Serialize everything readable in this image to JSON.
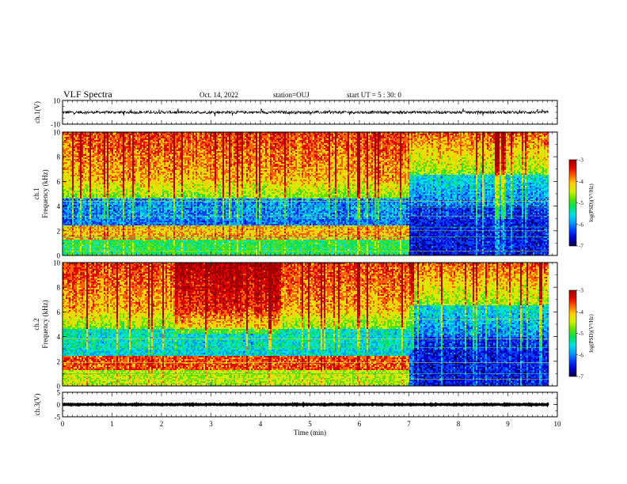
{
  "header": {
    "title": "VLF Spectra",
    "date": "Oct. 14, 2022",
    "station": "station=OUJ",
    "start": "start  UT =   5 : 30: 0"
  },
  "chart_data": [
    {
      "type": "line",
      "name": "ch1-waveform",
      "ylabel": "ch.1(V)",
      "ylim": [
        -10,
        10
      ],
      "yticks": [
        "10",
        "-10"
      ],
      "xlim": [
        0,
        10
      ],
      "series": [
        {
          "color": "#000000",
          "baseline": 0,
          "noise_amplitude": 1.2
        }
      ]
    },
    {
      "type": "heatmap",
      "name": "ch1-spectrogram",
      "ylabel_top": "ch.1",
      "ylabel": "Frequency (kHz)",
      "ylim": [
        0,
        10
      ],
      "yticks": [
        "0",
        "2",
        "4",
        "6",
        "8",
        "10"
      ],
      "xlim": [
        0,
        10
      ],
      "data_end_min": 9.82,
      "transition_min": 7.0,
      "colorbar": {
        "label": "log(PSD)(V²/Hz)",
        "range": [
          -7,
          -3
        ],
        "ticks": [
          "-3",
          "-4",
          "-5",
          "-6",
          "-7"
        ]
      }
    },
    {
      "type": "heatmap",
      "name": "ch2-spectrogram",
      "ylabel_top": "ch.2",
      "ylabel": "Frequency (kHz)",
      "ylim": [
        0,
        10
      ],
      "yticks": [
        "0",
        "2",
        "4",
        "6",
        "8",
        "10"
      ],
      "xlim": [
        0,
        10
      ],
      "data_end_min": 9.82,
      "transition_min": 7.0,
      "colorbar": {
        "label": "log(PSD)(V²/Hz)",
        "range": [
          -7,
          -3
        ],
        "ticks": [
          "-3",
          "-4",
          "-5",
          "-6",
          "-7"
        ]
      }
    },
    {
      "type": "line",
      "name": "ch3-waveform",
      "ylabel": "ch.3(V)",
      "ylim": [
        -5,
        5
      ],
      "yticks": [
        "5",
        "0",
        "-5"
      ],
      "xlim": [
        0,
        10
      ],
      "xticks": [
        "0",
        "1",
        "2",
        "3",
        "4",
        "5",
        "6",
        "7",
        "8",
        "9",
        "10"
      ],
      "xlabel": "Time  (min)",
      "series": [
        {
          "color": "#000000",
          "value": 0,
          "noise_amplitude": 0.3
        }
      ]
    }
  ],
  "colormap": [
    "#08004a",
    "#0000c8",
    "#0040ff",
    "#00a0ff",
    "#00e0e0",
    "#00e060",
    "#60e000",
    "#d0f000",
    "#ffd000",
    "#ff6000",
    "#e00000",
    "#a00000"
  ]
}
